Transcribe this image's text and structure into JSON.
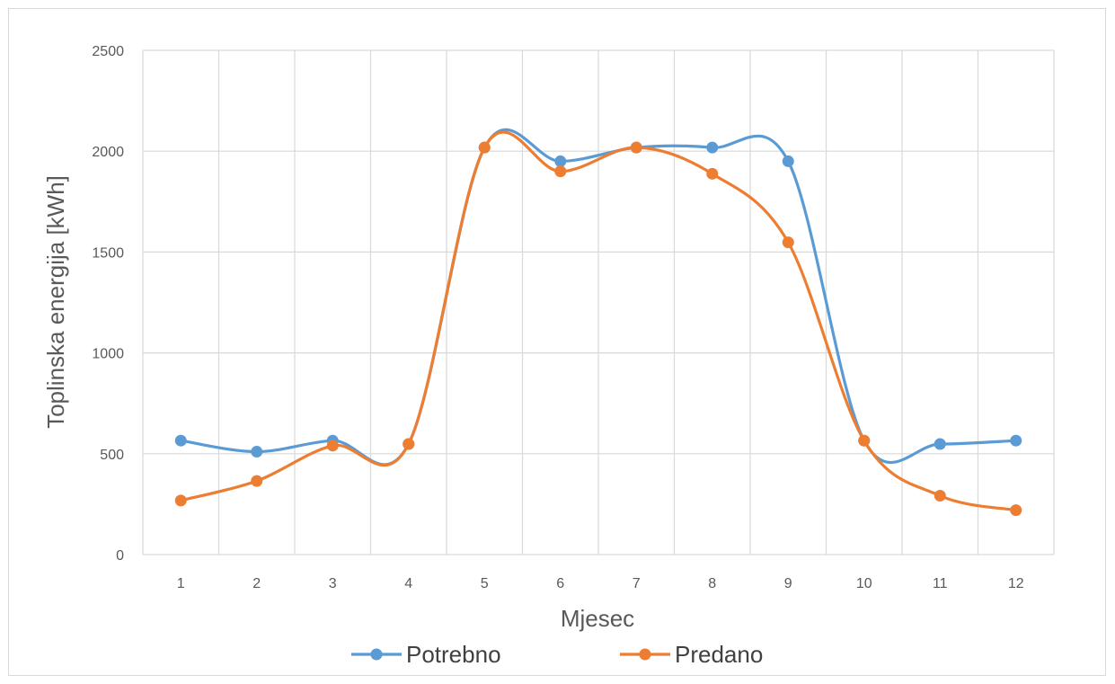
{
  "chart_data": {
    "type": "line",
    "smooth": true,
    "categories": [
      "1",
      "2",
      "3",
      "4",
      "5",
      "6",
      "7",
      "8",
      "9",
      "10",
      "11",
      "12"
    ],
    "series": [
      {
        "name": "Potrebno",
        "color": "#5b9bd5",
        "values": [
          565,
          510,
          565,
          548,
          2018,
          1950,
          2018,
          2018,
          1950,
          565,
          548,
          565
        ]
      },
      {
        "name": "Predano",
        "color": "#ed7d31",
        "values": [
          268,
          365,
          540,
          548,
          2018,
          1900,
          2018,
          1888,
          1548,
          565,
          292,
          220
        ]
      }
    ],
    "title": "",
    "xlabel": "Mjesec",
    "ylabel": "Toplinska energija [kWh]",
    "ylim": [
      0,
      2500
    ],
    "yticks": [
      "0",
      "500",
      "1000",
      "1500",
      "2000",
      "2500"
    ],
    "grid": true,
    "legend": "bottom"
  }
}
